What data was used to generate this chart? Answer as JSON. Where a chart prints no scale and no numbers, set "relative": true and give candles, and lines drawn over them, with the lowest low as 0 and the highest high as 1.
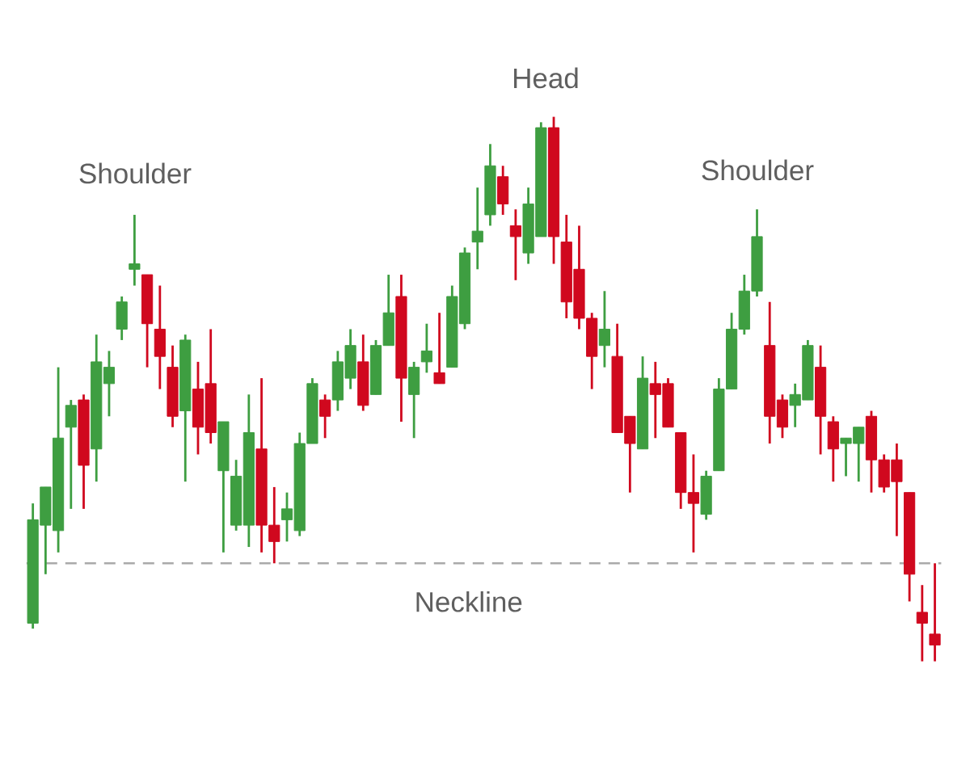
{
  "chart_data": {
    "type": "candlestick",
    "relative": true,
    "tick_labels": false,
    "categories": [
      null,
      null,
      null,
      null,
      null,
      null,
      null,
      null,
      null,
      null,
      null,
      null,
      null,
      null,
      null,
      null,
      null,
      null,
      null,
      null,
      null,
      null,
      null,
      null,
      null,
      null,
      null,
      null,
      null,
      null,
      null,
      null,
      null,
      null,
      null,
      null,
      null,
      null,
      null,
      null,
      null,
      null,
      null,
      null,
      null,
      null,
      null,
      null,
      null,
      null,
      null,
      null,
      null,
      null,
      null,
      null,
      null,
      null,
      null,
      null,
      null,
      null,
      null,
      null,
      null,
      null,
      null,
      null,
      null,
      null,
      null,
      null
    ],
    "ohlc": [
      [
        0.07,
        0.29,
        0.06,
        0.26
      ],
      [
        0.25,
        0.32,
        0.16,
        0.32
      ],
      [
        0.24,
        0.54,
        0.2,
        0.41
      ],
      [
        0.43,
        0.48,
        0.28,
        0.47
      ],
      [
        0.48,
        0.49,
        0.28,
        0.36
      ],
      [
        0.39,
        0.6,
        0.33,
        0.55
      ],
      [
        0.51,
        0.57,
        0.45,
        0.54
      ],
      [
        0.61,
        0.67,
        0.59,
        0.66
      ],
      [
        0.72,
        0.82,
        0.69,
        0.73
      ],
      [
        0.71,
        0.71,
        0.54,
        0.62
      ],
      [
        0.61,
        0.69,
        0.5,
        0.56
      ],
      [
        0.54,
        0.58,
        0.43,
        0.45
      ],
      [
        0.46,
        0.6,
        0.33,
        0.59
      ],
      [
        0.5,
        0.55,
        0.38,
        0.43
      ],
      [
        0.51,
        0.61,
        0.4,
        0.42
      ],
      [
        0.35,
        0.44,
        0.2,
        0.44
      ],
      [
        0.25,
        0.37,
        0.24,
        0.34
      ],
      [
        0.25,
        0.49,
        0.21,
        0.42
      ],
      [
        0.39,
        0.52,
        0.2,
        0.25
      ],
      [
        0.25,
        0.32,
        0.18,
        0.22
      ],
      [
        0.26,
        0.31,
        0.22,
        0.28
      ],
      [
        0.24,
        0.42,
        0.23,
        0.4
      ],
      [
        0.4,
        0.52,
        0.4,
        0.51
      ],
      [
        0.48,
        0.49,
        0.41,
        0.45
      ],
      [
        0.48,
        0.57,
        0.46,
        0.55
      ],
      [
        0.52,
        0.61,
        0.5,
        0.58
      ],
      [
        0.55,
        0.6,
        0.46,
        0.47
      ],
      [
        0.49,
        0.59,
        0.49,
        0.58
      ],
      [
        0.58,
        0.71,
        0.58,
        0.64
      ],
      [
        0.67,
        0.71,
        0.44,
        0.52
      ],
      [
        0.49,
        0.55,
        0.41,
        0.54
      ],
      [
        0.55,
        0.62,
        0.53,
        0.57
      ],
      [
        0.53,
        0.64,
        0.51,
        0.51
      ],
      [
        0.54,
        0.69,
        0.54,
        0.67
      ],
      [
        0.62,
        0.76,
        0.61,
        0.75
      ],
      [
        0.77,
        0.87,
        0.72,
        0.79
      ],
      [
        0.82,
        0.95,
        0.8,
        0.91
      ],
      [
        0.89,
        0.91,
        0.82,
        0.84
      ],
      [
        0.8,
        0.83,
        0.7,
        0.78
      ],
      [
        0.75,
        0.87,
        0.73,
        0.84
      ],
      [
        0.78,
        0.99,
        0.78,
        0.98
      ],
      [
        0.98,
        1.0,
        0.73,
        0.78
      ],
      [
        0.77,
        0.82,
        0.63,
        0.66
      ],
      [
        0.72,
        0.8,
        0.61,
        0.63
      ],
      [
        0.63,
        0.64,
        0.5,
        0.56
      ],
      [
        0.58,
        0.68,
        0.54,
        0.61
      ],
      [
        0.56,
        0.62,
        0.42,
        0.42
      ],
      [
        0.45,
        0.45,
        0.31,
        0.4
      ],
      [
        0.39,
        0.56,
        0.39,
        0.52
      ],
      [
        0.51,
        0.55,
        0.41,
        0.49
      ],
      [
        0.51,
        0.52,
        0.43,
        0.43
      ],
      [
        0.42,
        0.42,
        0.28,
        0.31
      ],
      [
        0.31,
        0.38,
        0.2,
        0.29
      ],
      [
        0.27,
        0.35,
        0.26,
        0.34
      ],
      [
        0.35,
        0.52,
        0.35,
        0.5
      ],
      [
        0.5,
        0.64,
        0.5,
        0.61
      ],
      [
        0.61,
        0.71,
        0.6,
        0.68
      ],
      [
        0.68,
        0.83,
        0.67,
        0.78
      ],
      [
        0.58,
        0.66,
        0.4,
        0.45
      ],
      [
        0.48,
        0.49,
        0.41,
        0.43
      ],
      [
        0.47,
        0.51,
        0.43,
        0.49
      ],
      [
        0.48,
        0.59,
        0.48,
        0.58
      ],
      [
        0.54,
        0.58,
        0.38,
        0.45
      ],
      [
        0.44,
        0.45,
        0.33,
        0.39
      ],
      [
        0.4,
        0.41,
        0.34,
        0.41
      ],
      [
        0.4,
        0.43,
        0.33,
        0.43
      ],
      [
        0.45,
        0.46,
        0.31,
        0.37
      ],
      [
        0.37,
        0.38,
        0.31,
        0.32
      ],
      [
        0.37,
        0.4,
        0.23,
        0.33
      ],
      [
        0.31,
        0.31,
        0.11,
        0.16
      ],
      [
        0.09,
        0.14,
        0.0,
        0.07
      ],
      [
        0.05,
        0.18,
        0.0,
        0.03
      ]
    ],
    "colors": [
      "#3e9e41",
      "#3e9e41",
      "#3e9e41",
      "#3e9e41",
      "#d0081e",
      "#3e9e41",
      "#3e9e41",
      "#3e9e41",
      "#3e9e41",
      "#d0081e",
      "#d0081e",
      "#d0081e",
      "#3e9e41",
      "#d0081e",
      "#d0081e",
      "#3e9e41",
      "#3e9e41",
      "#3e9e41",
      "#d0081e",
      "#d0081e",
      "#3e9e41",
      "#3e9e41",
      "#3e9e41",
      "#d0081e",
      "#3e9e41",
      "#3e9e41",
      "#d0081e",
      "#3e9e41",
      "#3e9e41",
      "#d0081e",
      "#3e9e41",
      "#3e9e41",
      "#d0081e",
      "#3e9e41",
      "#3e9e41",
      "#3e9e41",
      "#3e9e41",
      "#d0081e",
      "#d0081e",
      "#3e9e41",
      "#3e9e41",
      "#d0081e",
      "#d0081e",
      "#d0081e",
      "#d0081e",
      "#3e9e41",
      "#d0081e",
      "#d0081e",
      "#3e9e41",
      "#d0081e",
      "#d0081e",
      "#d0081e",
      "#d0081e",
      "#3e9e41",
      "#3e9e41",
      "#3e9e41",
      "#3e9e41",
      "#3e9e41",
      "#d0081e",
      "#d0081e",
      "#3e9e41",
      "#3e9e41",
      "#d0081e",
      "#d0081e",
      "#3e9e41",
      "#3e9e41",
      "#d0081e",
      "#d0081e",
      "#d0081e",
      "#d0081e",
      "#d0081e",
      "#d0081e"
    ],
    "annotations": [
      "Shoulder",
      "Head",
      "Shoulder"
    ],
    "ref_lines": [
      {
        "axis": "y",
        "value": 0.18,
        "label": "Neckline",
        "color": "#aaaaaa",
        "line_style": "dashed"
      }
    ]
  }
}
